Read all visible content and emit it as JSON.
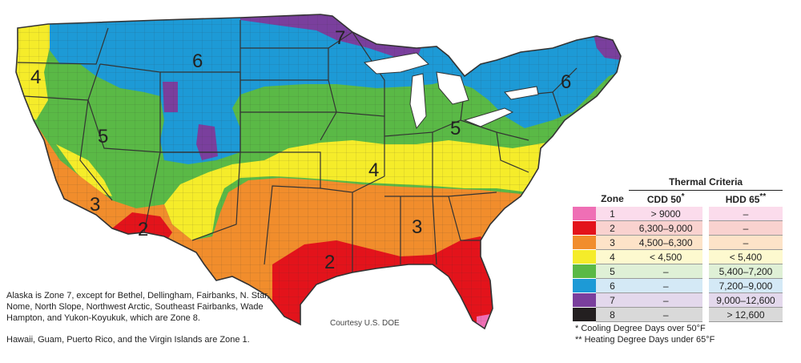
{
  "map_labels": [
    "4",
    "6",
    "7",
    "6",
    "5",
    "5",
    "4",
    "3",
    "2",
    "3",
    "2"
  ],
  "colors": {
    "z1": "#ef6fb5",
    "z2": "#e3131b",
    "z3": "#f18d2c",
    "z4": "#f5ec2a",
    "z5": "#5ab946",
    "z6": "#1d9ad6",
    "z7": "#7a3f9d",
    "z8": "#231f20",
    "border": "#333333"
  },
  "legend": {
    "title": "Thermal Criteria",
    "col_zone": "Zone",
    "col_cdd": "CDD 50",
    "col_cdd_sup": "*",
    "col_hdd": "HDD 65",
    "col_hdd_sup": "**",
    "rows": [
      {
        "zone": "1",
        "cdd": "> 9000",
        "hdd": "–",
        "swatch": "#ef6fb5",
        "cell_bg": "#fbdcec"
      },
      {
        "zone": "2",
        "cdd": "6,300–9,000",
        "hdd": "–",
        "swatch": "#e3131b",
        "cell_bg": "#f9d2cf"
      },
      {
        "zone": "3",
        "cdd": "4,500–6,300",
        "hdd": "–",
        "swatch": "#f18d2c",
        "cell_bg": "#fde3c8"
      },
      {
        "zone": "4",
        "cdd": "< 4,500",
        "hdd": "< 5,400",
        "swatch": "#f5ec2a",
        "cell_bg": "#fdf9cf"
      },
      {
        "zone": "5",
        "cdd": "–",
        "hdd": "5,400–7,200",
        "swatch": "#5ab946",
        "cell_bg": "#dff0d6"
      },
      {
        "zone": "6",
        "cdd": "–",
        "hdd": "7,200–9,000",
        "swatch": "#1d9ad6",
        "cell_bg": "#d4e9f6"
      },
      {
        "zone": "7",
        "cdd": "–",
        "hdd": "9,000–12,600",
        "swatch": "#7a3f9d",
        "cell_bg": "#e3d8ec"
      },
      {
        "zone": "8",
        "cdd": "–",
        "hdd": "> 12,600",
        "swatch": "#231f20",
        "cell_bg": "#d9d9d9"
      }
    ]
  },
  "footnotes": {
    "cdd": "* Cooling Degree Days over 50°F",
    "hdd": "** Heating Degree Days under 65°F"
  },
  "notes": {
    "alaska": "Alaska is Zone 7, except for Bethel, Dellingham, Fairbanks, N. Star, Nome, North Slope, Northwest Arctic, Southeast Fairbanks, Wade Hampton, and Yukon-Koyukuk, which are Zone 8.",
    "hawaii": "Hawaii, Guam, Puerto Rico, and the Virgin Islands are Zone 1."
  },
  "credit": "Courtesy U.S. DOE"
}
